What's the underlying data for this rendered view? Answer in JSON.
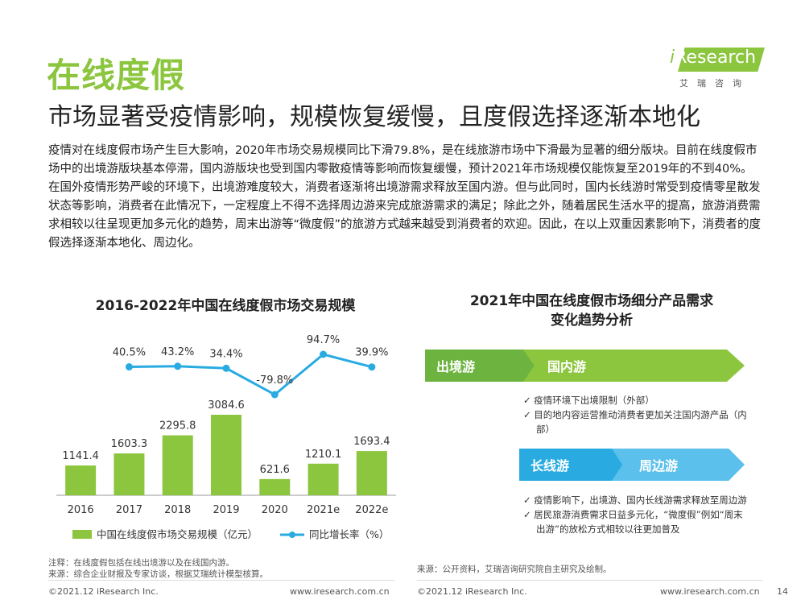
{
  "page": {
    "title": "在线度假",
    "subtitle": "市场显著受疫情影响，规模恢复缓慢，且度假选择逐渐本地化",
    "paragraphs": [
      "疫情对在线度假市场产生巨大影响，2020年市场交易规模同比下滑79.8%，是在线旅游市场中下滑最为显著的细分版块。目前在线度假市场中的出境游版块基本停滞，国内游版块也受到国内零散疫情等影响而恢复缓慢，预计2021年市场规模仅能恢复至2019年的不到40%。",
      "在国外疫情形势严峻的环境下，出境游难度较大，消费者逐渐将出境游需求释放至国内游。但与此同时，国内长线游时常受到疫情零星散发状态等影响，消费者在此情况下，一定程度上不得不选择周边游来完成旅游需求的满足；除此之外，随着居民生活水平的提高，旅游消费需求相较以往呈现更加多元化的趋势，周末出游等“微度假”的旅游方式越来越受到消费者的欢迎。因此，在以上双重因素影响下，消费者的度假选择逐渐本地化、周边化。"
    ]
  },
  "logo": {
    "i": "i",
    "text": "Research",
    "cn": "艾瑞咨询"
  },
  "colors": {
    "accent": "#8CC63F",
    "line": "#29ABE2",
    "arrow_green": "#6DB33F",
    "arrow_blue": "#29ABE2"
  },
  "chart_data": {
    "type": "bar",
    "title": "2016-2022年中国在线度假市场交易规模",
    "categories": [
      "2016",
      "2017",
      "2018",
      "2019",
      "2020",
      "2021e",
      "2022e"
    ],
    "series": [
      {
        "name": "中国在线度假市场交易规模（亿元）",
        "type": "bar",
        "values": [
          1141.4,
          1603.3,
          2295.8,
          3084.6,
          621.6,
          1210.1,
          1693.4
        ],
        "labels": [
          "1141.4",
          "1603.3",
          "2295.8",
          "3084.6",
          "621.6",
          "1210.1",
          "1693.4"
        ]
      },
      {
        "name": "同比增长率（%）",
        "type": "line",
        "values": [
          null,
          40.5,
          43.2,
          34.4,
          -79.8,
          94.7,
          39.9
        ],
        "labels": [
          "",
          "40.5%",
          "43.2%",
          "34.4%",
          "-79.8%",
          "94.7%",
          "39.9%"
        ]
      }
    ],
    "legend_position": "bottom"
  },
  "right_panel": {
    "title_line1": "2021年中国在线度假市场细分产品需求",
    "title_line2": "变化趋势分析",
    "arrow1_from": "出境游",
    "arrow1_to": "国内游",
    "list1": [
      "✓ 疫情环境下出境限制（外部）",
      "✓ 目的地内容运营推动消费者更加关注国内游产品（内部）"
    ],
    "arrow2_from": "长线游",
    "arrow2_to": "周边游",
    "list2": [
      "✓ 疫情影响下，出境游、国内长线游需求释放至周边游",
      "✓ 居民旅游消费需求日益多元化，“微度假”例如“周末出游”的放松方式相较以往更加普及"
    ]
  },
  "notes": {
    "left_1": "注释：在线度假包括在线出境游以及在线国内游。",
    "left_2": "来源：综合企业财报及专家访谈，根据艾瑞统计模型核算。",
    "right": "来源：公开资料，艾瑞咨询研究院自主研究及绘制。"
  },
  "footer": {
    "copyright_left": "©2021.12 iResearch Inc.",
    "url_left": "www.iresearch.com.cn",
    "copyright_right": "©2021.12 iResearch Inc.",
    "url_right": "www.iresearch.com.cn",
    "page_number": "14"
  }
}
